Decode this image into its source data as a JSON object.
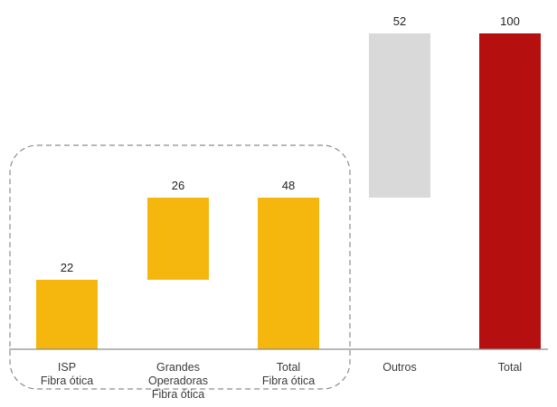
{
  "chart_data": {
    "type": "waterfall",
    "categories": [
      [
        "ISP",
        "Fibra ótica"
      ],
      [
        "Grandes",
        "Operadoras",
        "Fibra ótica"
      ],
      [
        "Total",
        "Fibra ótica"
      ],
      [
        "Outros"
      ],
      [
        "Total"
      ]
    ],
    "bars": [
      {
        "label": "22",
        "start": 0,
        "end": 22,
        "color": "#F5B70E"
      },
      {
        "label": "26",
        "start": 22,
        "end": 48,
        "color": "#F5B70E"
      },
      {
        "label": "48",
        "start": 0,
        "end": 48,
        "color": "#F5B70E"
      },
      {
        "label": "52",
        "start": 48,
        "end": 100,
        "color": "#D9D9D9"
      },
      {
        "label": "100",
        "start": 0,
        "end": 100,
        "color": "#B5100F"
      }
    ],
    "ylim": [
      0,
      100
    ],
    "grouped_bracket": "dashed rounded box around first three bars",
    "title": "",
    "xlabel": "",
    "ylabel": ""
  }
}
